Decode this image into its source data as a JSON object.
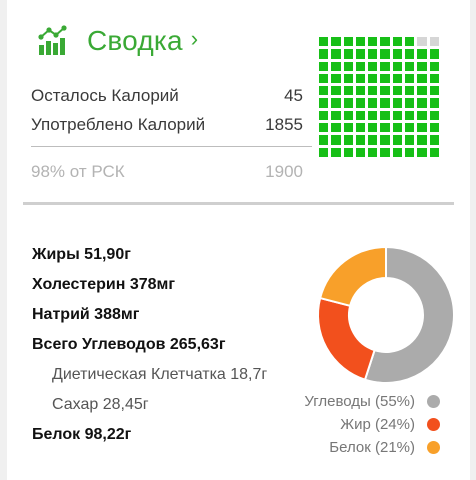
{
  "header": {
    "title": "Сводка",
    "chevron": "›",
    "icon": "bar-chart-trend-icon",
    "color": "#3aa935"
  },
  "summary": {
    "remaining_label": "Осталось Калорий",
    "remaining_value": "45",
    "consumed_label": "Употреблено Калорий",
    "consumed_value": "1855",
    "rsk_label": "98% от РСК",
    "rsk_value": "1900"
  },
  "progress_grid": {
    "total_cells": 100,
    "filled_cells": 98,
    "filled_color": "#17bf17",
    "empty_color": "#d6d6d6"
  },
  "nutrients": [
    {
      "text": "Жиры 51,90г",
      "style": "bold"
    },
    {
      "text": "Холестерин 378мг",
      "style": "bold"
    },
    {
      "text": "Натрий 388мг",
      "style": "bold"
    },
    {
      "text": "Всего Углеводов 265,63г",
      "style": "bold"
    },
    {
      "text": "Диетическая Клетчатка 18,7г",
      "style": "sub"
    },
    {
      "text": "Сахар 28,45г",
      "style": "sub"
    },
    {
      "text": "Белок 98,22г",
      "style": "bold"
    }
  ],
  "chart_data": {
    "type": "pie",
    "title": "",
    "slices": [
      {
        "name": "Углеводы",
        "label": "Углеводы (55%)",
        "value": 55,
        "color": "#ababab"
      },
      {
        "name": "Жир",
        "label": "Жир (24%)",
        "value": 24,
        "color": "#f2501d"
      },
      {
        "name": "Белок",
        "label": "Белок (21%)",
        "value": 21,
        "color": "#f8a02a"
      }
    ],
    "legend_position": "bottom-right"
  }
}
